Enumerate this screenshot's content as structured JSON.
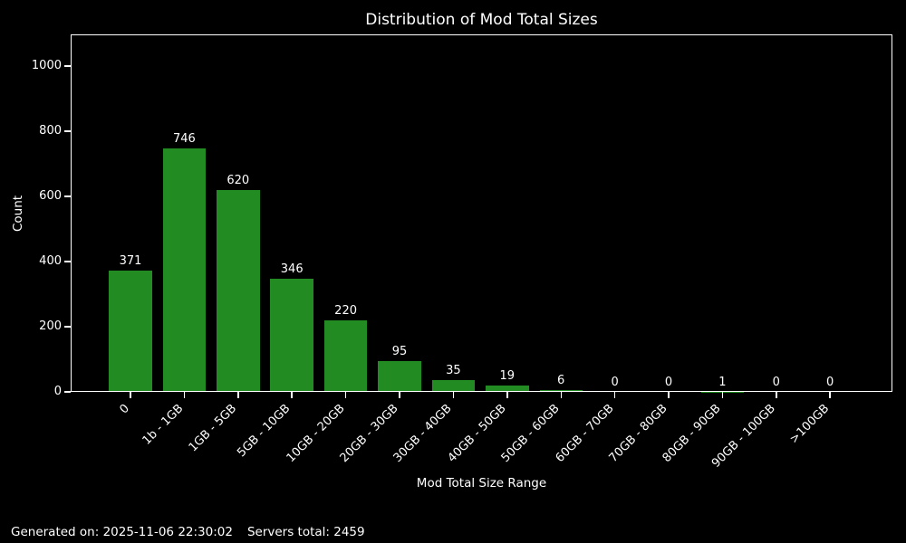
{
  "figure": {
    "footer": {
      "generated_on": "Generated on: 2025-11-06 22:30:02",
      "servers_total": "Servers total: 2459"
    }
  },
  "chart_data": {
    "type": "bar",
    "title": "Distribution of Mod Total Sizes",
    "categories": [
      "0",
      "1b - 1GB",
      "1GB - 5GB",
      "5GB - 10GB",
      "10GB - 20GB",
      "20GB - 30GB",
      "30GB - 40GB",
      "40GB - 50GB",
      "50GB - 60GB",
      "60GB - 70GB",
      "70GB - 80GB",
      "80GB - 90GB",
      "90GB - 100GB",
      ">100GB"
    ],
    "values": [
      371,
      746,
      620,
      346,
      220,
      95,
      35,
      19,
      6,
      0,
      0,
      1,
      0,
      0
    ],
    "xlabel": "Mod Total Size Range",
    "ylabel": "Count",
    "yticks": [
      0,
      200,
      400,
      600,
      800,
      1000
    ],
    "ylim": [
      0,
      1097
    ],
    "x_tick_rotation_deg": 45,
    "bar_value_labels": true,
    "grid": false,
    "legend_position": "none",
    "bar_color": "#228B22",
    "background_color": "#000000",
    "text_color": "#ffffff"
  }
}
